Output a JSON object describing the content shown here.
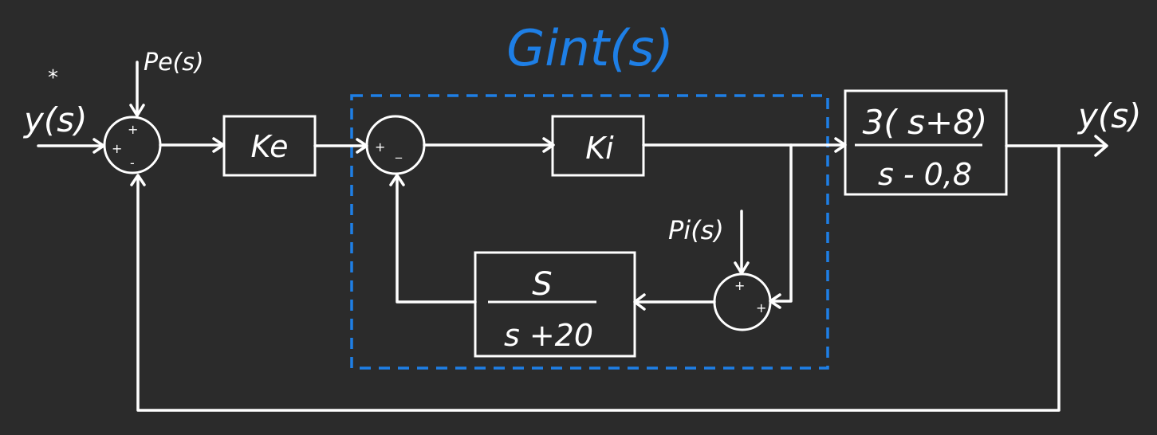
{
  "diagram": {
    "inner_loop_title": "Gint(s)",
    "input_label": "y(s)",
    "input_star": "*",
    "output_label": "y(s)",
    "outer_disturbance": "Pe(s)",
    "inner_disturbance": "Pi(s)",
    "outer_gain": "Ke",
    "inner_gain": "Ki",
    "feedback_tf": {
      "numerator": "S",
      "denominator": "s +20"
    },
    "plant_tf": {
      "numerator": "3( s+8)",
      "denominator": "s - 0,8"
    },
    "outer_sum_signs": {
      "left": "+",
      "top": "+",
      "bottom": "-"
    },
    "inner_sum_signs": {
      "left": "+",
      "right": "_"
    },
    "disturbance_sum_signs": {
      "top": "+",
      "right": "+"
    },
    "colors": {
      "background": "#2b2b2b",
      "lines": "#ffffff",
      "highlight": "#1e7fe6"
    }
  }
}
